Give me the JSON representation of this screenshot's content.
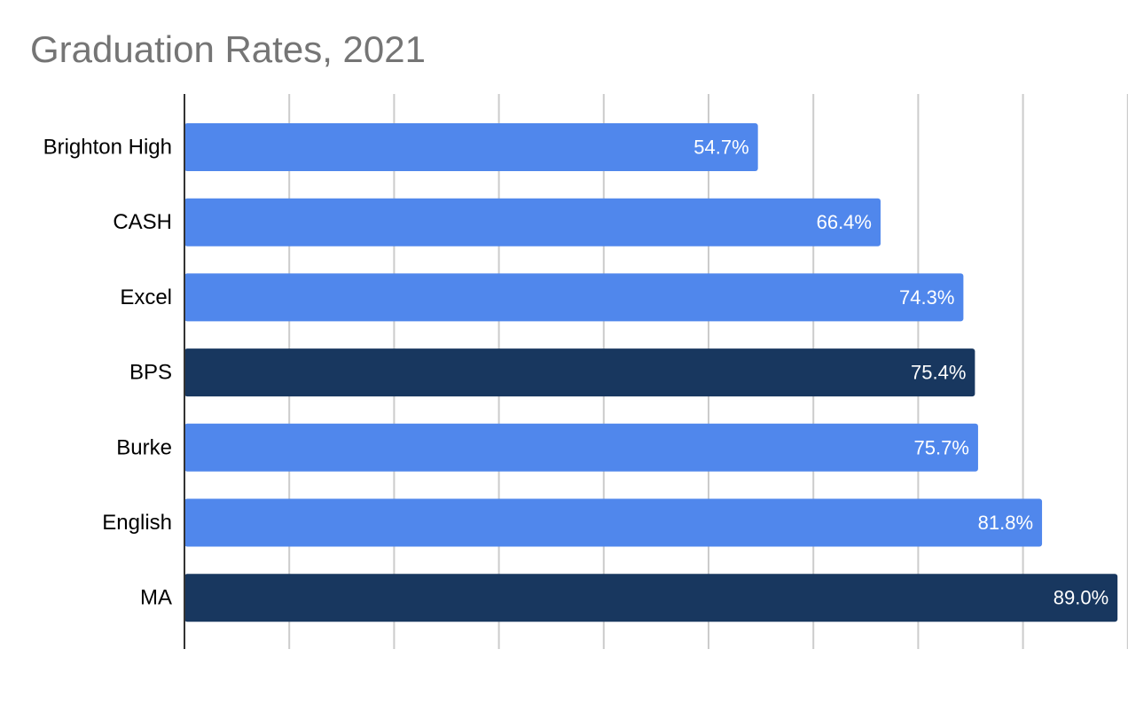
{
  "chart_data": {
    "type": "bar",
    "orientation": "horizontal",
    "title": "Graduation Rates, 2021",
    "xlabel": "",
    "ylabel": "",
    "categories": [
      "Brighton High",
      "CASH",
      "Excel",
      "BPS",
      "Burke",
      "English",
      "MA"
    ],
    "values": [
      54.7,
      66.4,
      74.3,
      75.4,
      75.7,
      81.8,
      89.0
    ],
    "value_labels": [
      "54.7%",
      "66.4%",
      "74.3%",
      "75.4%",
      "75.7%",
      "81.8%",
      "89.0%"
    ],
    "xlim": [
      0,
      90
    ],
    "grid": true,
    "legend": "none",
    "colors": {
      "default_bar": "#5087EC",
      "highlight_bar": "#18375F",
      "gridline": "#CCCCCC",
      "axis": "#333333",
      "title": "#757575"
    },
    "bar_colors": [
      "#5087EC",
      "#5087EC",
      "#5087EC",
      "#18375F",
      "#5087EC",
      "#5087EC",
      "#18375F"
    ]
  }
}
